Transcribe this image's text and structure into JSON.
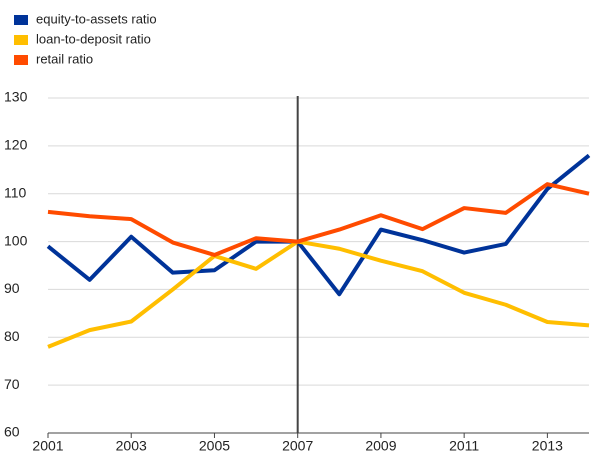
{
  "chart_data": {
    "type": "line",
    "x": [
      2001,
      2002,
      2003,
      2004,
      2005,
      2006,
      2007,
      2008,
      2009,
      2010,
      2011,
      2012,
      2013,
      2014
    ],
    "series": [
      {
        "name": "equity-to-assets ratio",
        "color": "#003399",
        "values": [
          99,
          92,
          101,
          93.5,
          94,
          100,
          100,
          89,
          102.5,
          100.3,
          97.7,
          99.5,
          111,
          118
        ]
      },
      {
        "name": "loan-to-deposit ratio",
        "color": "#ffbe00",
        "values": [
          78,
          81.5,
          83.3,
          90,
          97,
          94.3,
          100,
          98.5,
          96,
          93.8,
          89.3,
          86.8,
          83.2,
          82.5
        ]
      },
      {
        "name": "retail ratio",
        "color": "#ff4b00",
        "values": [
          106.2,
          105.3,
          104.7,
          99.8,
          97.2,
          100.7,
          100,
          102.5,
          105.5,
          102.6,
          107,
          106,
          112,
          110
        ]
      }
    ],
    "xlim": [
      2001,
      2014
    ],
    "xticks": [
      2001,
      2003,
      2005,
      2007,
      2009,
      2011,
      2013
    ],
    "ylim": [
      60,
      130
    ],
    "yticks": [
      60,
      70,
      80,
      90,
      100,
      110,
      120,
      130
    ],
    "vline": 2007,
    "grid": true,
    "legend": "top-left"
  }
}
